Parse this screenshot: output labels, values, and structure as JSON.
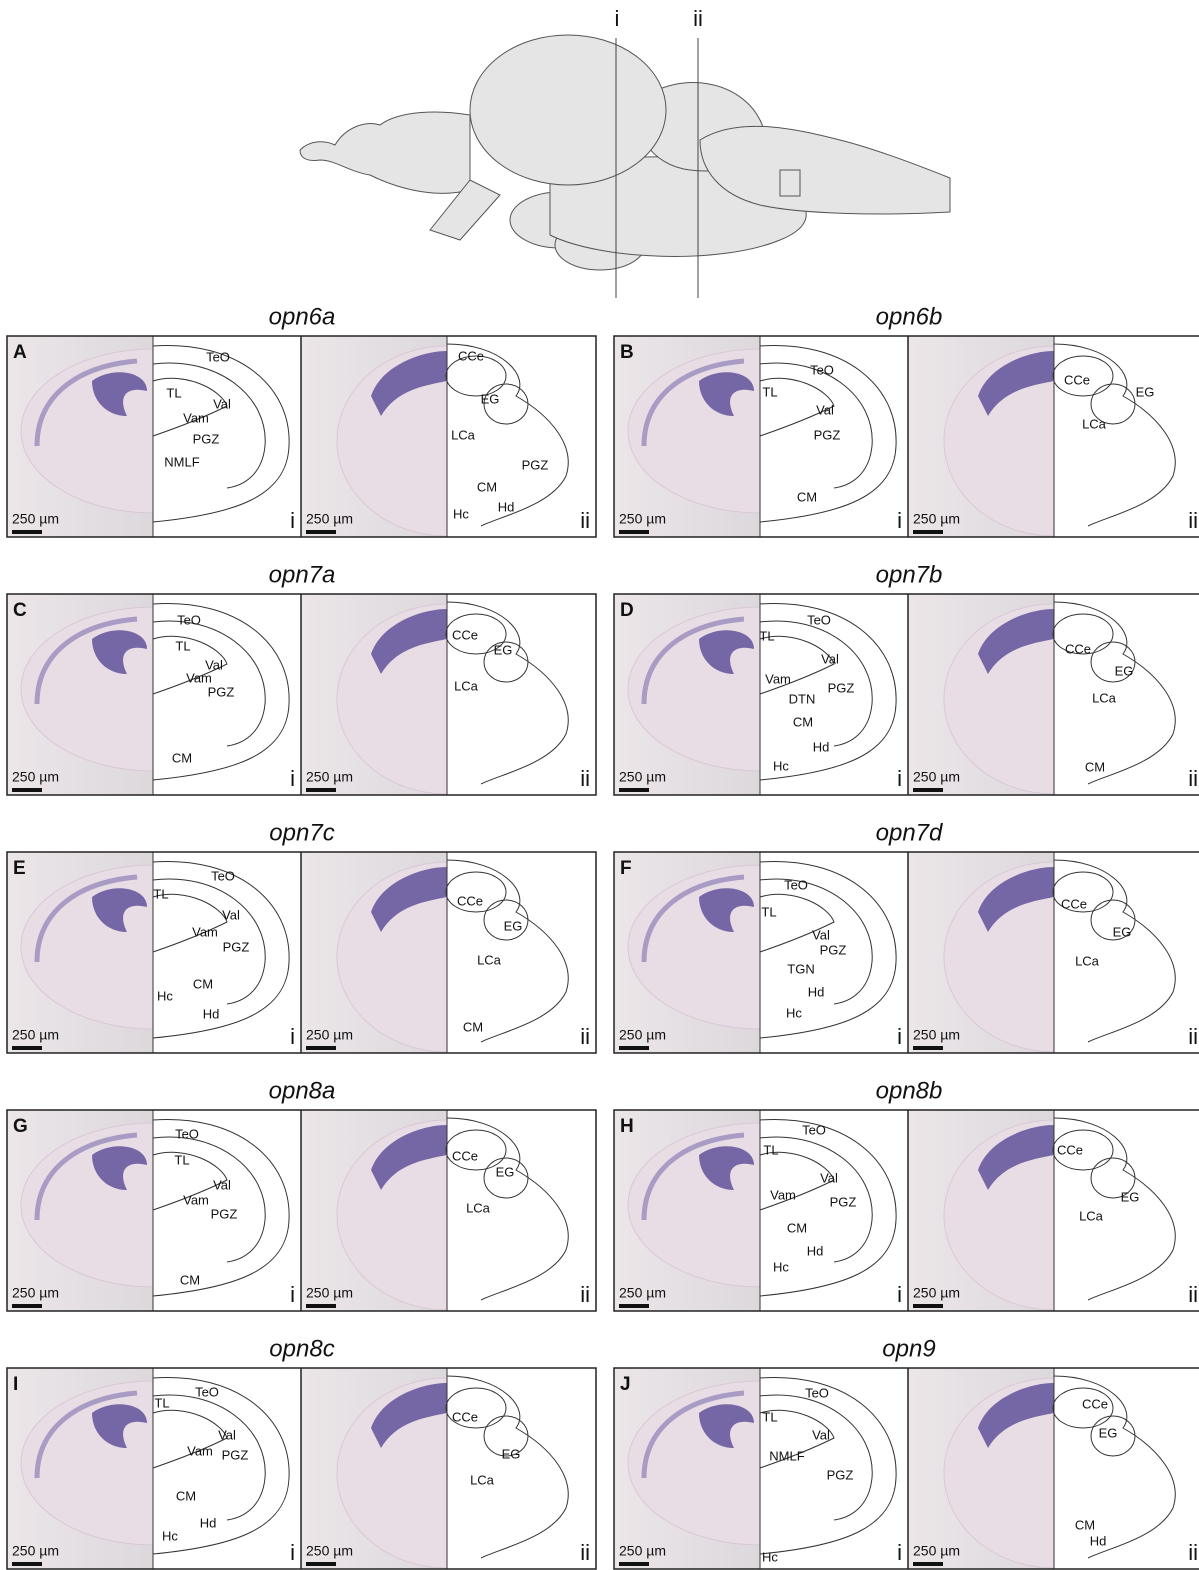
{
  "schematic": {
    "section_labels": [
      "i",
      "ii"
    ]
  },
  "panels": [
    {
      "gene": "opn6a",
      "letter": "A",
      "scale": "250 µm",
      "sections": [
        {
          "label": "i",
          "regions": [
            "TeO",
            "TL",
            "Val",
            "Vam",
            "PGZ",
            "NMLF"
          ]
        },
        {
          "label": "ii",
          "regions": [
            "CCe",
            "EG",
            "LCa",
            "PGZ",
            "CM",
            "Hc",
            "Hd"
          ]
        }
      ]
    },
    {
      "gene": "opn6b",
      "letter": "B",
      "scale": "250 µm",
      "sections": [
        {
          "label": "i",
          "regions": [
            "TeO",
            "TL",
            "Val",
            "PGZ",
            "CM"
          ]
        },
        {
          "label": "ii",
          "regions": [
            "CCe",
            "EG",
            "LCa"
          ]
        }
      ]
    },
    {
      "gene": "opn7a",
      "letter": "C",
      "scale": "250 µm",
      "sections": [
        {
          "label": "i",
          "regions": [
            "TeO",
            "TL",
            "Val",
            "Vam",
            "PGZ",
            "CM"
          ]
        },
        {
          "label": "ii",
          "regions": [
            "CCe",
            "EG",
            "LCa"
          ]
        }
      ]
    },
    {
      "gene": "opn7b",
      "letter": "D",
      "scale": "250 µm",
      "sections": [
        {
          "label": "i",
          "regions": [
            "TeO",
            "TL",
            "Val",
            "Vam",
            "DTN",
            "PGZ",
            "CM",
            "Hd",
            "Hc"
          ]
        },
        {
          "label": "ii",
          "regions": [
            "CCe",
            "EG",
            "LCa",
            "CM"
          ]
        }
      ]
    },
    {
      "gene": "opn7c",
      "letter": "E",
      "scale": "250 µm",
      "sections": [
        {
          "label": "i",
          "regions": [
            "TeO",
            "TL",
            "Val",
            "Vam",
            "PGZ",
            "CM",
            "Hc",
            "Hd"
          ]
        },
        {
          "label": "ii",
          "regions": [
            "CCe",
            "EG",
            "LCa",
            "CM"
          ]
        }
      ]
    },
    {
      "gene": "opn7d",
      "letter": "F",
      "scale": "250 µm",
      "sections": [
        {
          "label": "i",
          "regions": [
            "TeO",
            "TL",
            "Val",
            "PGZ",
            "TGN",
            "Hd",
            "Hc"
          ]
        },
        {
          "label": "ii",
          "regions": [
            "CCe",
            "EG",
            "LCa"
          ]
        }
      ]
    },
    {
      "gene": "opn8a",
      "letter": "G",
      "scale": "250 µm",
      "sections": [
        {
          "label": "i",
          "regions": [
            "TeO",
            "TL",
            "Val",
            "Vam",
            "PGZ",
            "CM"
          ]
        },
        {
          "label": "ii",
          "regions": [
            "CCe",
            "EG",
            "LCa"
          ]
        }
      ]
    },
    {
      "gene": "opn8b",
      "letter": "H",
      "scale": "250 µm",
      "sections": [
        {
          "label": "i",
          "regions": [
            "TeO",
            "TL",
            "Val",
            "Vam",
            "PGZ",
            "CM",
            "Hd",
            "Hc"
          ]
        },
        {
          "label": "ii",
          "regions": [
            "CCe",
            "EG",
            "LCa"
          ]
        }
      ]
    },
    {
      "gene": "opn8c",
      "letter": "I",
      "scale": "250 µm",
      "sections": [
        {
          "label": "i",
          "regions": [
            "TeO",
            "TL",
            "Val",
            "Vam",
            "PGZ",
            "CM",
            "Hc",
            "Hd"
          ]
        },
        {
          "label": "ii",
          "regions": [
            "CCe",
            "EG",
            "LCa"
          ]
        }
      ]
    },
    {
      "gene": "opn9",
      "letter": "J",
      "scale": "250 µm",
      "sections": [
        {
          "label": "i",
          "regions": [
            "TeO",
            "TL",
            "Val",
            "NMLF",
            "PGZ",
            "Hc"
          ]
        },
        {
          "label": "ii",
          "regions": [
            "CCe",
            "EG",
            "CM",
            "Hd"
          ]
        }
      ]
    }
  ]
}
